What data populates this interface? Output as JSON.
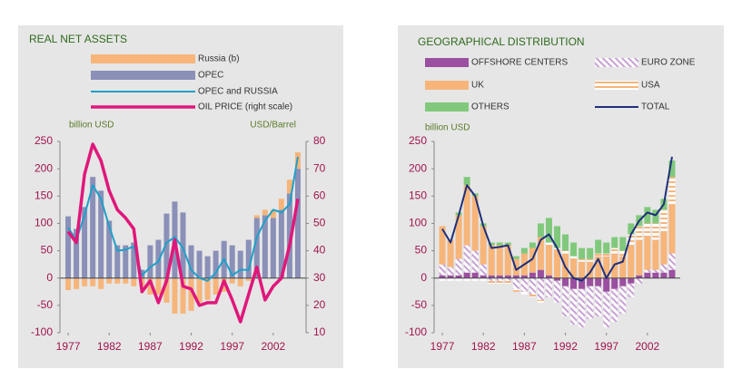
{
  "chart_data": [
    {
      "type": "bar_line",
      "title": "REAL NET ASSETS",
      "y_label": "billion USD",
      "y2_label": "USD/Barrel",
      "x": [
        1977,
        1978,
        1979,
        1980,
        1981,
        1982,
        1983,
        1984,
        1985,
        1986,
        1987,
        1988,
        1989,
        1990,
        1991,
        1992,
        1993,
        1994,
        1995,
        1996,
        1997,
        1998,
        1999,
        2000,
        2001,
        2002,
        2003,
        2004,
        2005
      ],
      "xlim": [
        1976,
        2006
      ],
      "xticks": [
        1977,
        1982,
        1987,
        1992,
        1997,
        2002
      ],
      "ylim": [
        -100,
        250
      ],
      "yticks": [
        -100,
        -50,
        0,
        50,
        100,
        150,
        200,
        250
      ],
      "y2lim": [
        10,
        80
      ],
      "y2ticks": [
        10,
        20,
        30,
        40,
        50,
        60,
        70,
        80
      ],
      "series": [
        {
          "name": "Russia (b)",
          "color": "#f7b57a",
          "kind": "bar",
          "values": [
            -22,
            -20,
            -15,
            -15,
            -20,
            -10,
            -10,
            -10,
            -15,
            -15,
            -30,
            -30,
            -45,
            -65,
            -65,
            -60,
            -45,
            -40,
            -30,
            -25,
            -10,
            -15,
            -5,
            5,
            10,
            15,
            20,
            25,
            30
          ]
        },
        {
          "name": "OPEC",
          "color": "#8a90b8",
          "kind": "bar",
          "values": [
            113,
            90,
            130,
            185,
            160,
            105,
            60,
            60,
            65,
            15,
            60,
            70,
            118,
            140,
            120,
            60,
            50,
            40,
            50,
            68,
            60,
            50,
            70,
            110,
            115,
            110,
            125,
            155,
            200
          ]
        },
        {
          "name": "OPEC and RUSSIA",
          "color": "#1fa0c8",
          "kind": "line",
          "values": [
            92,
            70,
            115,
            170,
            145,
            95,
            50,
            52,
            58,
            5,
            20,
            30,
            65,
            75,
            55,
            15,
            0,
            -5,
            10,
            35,
            5,
            15,
            15,
            75,
            105,
            125,
            120,
            135,
            222
          ]
        },
        {
          "name": "OIL PRICE (right scale)",
          "color": "#e0177a",
          "kind": "line",
          "axis": "y2",
          "values": [
            47,
            43,
            68,
            79,
            73,
            62,
            55,
            52,
            48,
            25,
            29,
            21,
            29,
            44,
            27,
            26,
            20,
            21,
            21,
            29,
            22,
            14,
            24,
            34,
            22,
            27,
            30,
            42,
            59
          ]
        }
      ]
    },
    {
      "type": "bar_line",
      "title": "GEOGRAPHICAL DISTRIBUTION",
      "y_label": "billion USD",
      "x": [
        1977,
        1978,
        1979,
        1980,
        1981,
        1982,
        1983,
        1984,
        1985,
        1986,
        1987,
        1988,
        1989,
        1990,
        1991,
        1992,
        1993,
        1994,
        1995,
        1996,
        1997,
        1998,
        1999,
        2000,
        2001,
        2002,
        2003,
        2004,
        2005
      ],
      "xlim": [
        1976,
        2006
      ],
      "xticks": [
        1977,
        1982,
        1987,
        1992,
        1997,
        2002
      ],
      "ylim": [
        -100,
        250
      ],
      "yticks": [
        -100,
        -50,
        0,
        50,
        100,
        150,
        200,
        250
      ],
      "series": [
        {
          "name": "OFFSHORE CENTERS",
          "color": "#9b4fa0",
          "kind": "bar",
          "values": [
            5,
            5,
            5,
            10,
            10,
            5,
            5,
            5,
            5,
            5,
            5,
            10,
            15,
            5,
            -5,
            -15,
            -20,
            -20,
            -15,
            -15,
            -25,
            -20,
            -15,
            -10,
            5,
            10,
            10,
            10,
            15
          ]
        },
        {
          "name": "EURO ZONE",
          "color": "#c8a0d4",
          "kind": "bar",
          "hatch": true,
          "values": [
            20,
            15,
            30,
            50,
            40,
            20,
            -5,
            -5,
            -5,
            -20,
            -25,
            -30,
            -40,
            -35,
            -40,
            -55,
            -65,
            -70,
            -60,
            -55,
            -65,
            -60,
            -50,
            -25,
            -10,
            5,
            5,
            15,
            30
          ]
        },
        {
          "name": "UK",
          "color": "#f7b57a",
          "kind": "bar",
          "values": [
            70,
            50,
            80,
            110,
            100,
            70,
            55,
            55,
            55,
            30,
            40,
            45,
            60,
            55,
            50,
            45,
            35,
            30,
            30,
            40,
            40,
            45,
            40,
            60,
            65,
            60,
            55,
            60,
            90
          ]
        },
        {
          "name": "USA",
          "color": "#f7b57a",
          "kind": "bar",
          "hatch": true,
          "values": [
            -5,
            -5,
            -5,
            -5,
            -5,
            -5,
            -5,
            -5,
            -5,
            -5,
            -5,
            -5,
            -5,
            5,
            5,
            5,
            5,
            5,
            5,
            5,
            5,
            10,
            10,
            20,
            25,
            25,
            30,
            40,
            50
          ]
        },
        {
          "name": "OTHERS",
          "color": "#80c97c",
          "kind": "bar",
          "values": [
            0,
            0,
            5,
            15,
            5,
            5,
            5,
            5,
            5,
            5,
            10,
            10,
            25,
            45,
            40,
            30,
            25,
            20,
            20,
            25,
            20,
            20,
            25,
            20,
            20,
            30,
            25,
            20,
            30
          ]
        },
        {
          "name": "TOTAL",
          "color": "#1f2f7a",
          "kind": "line",
          "values": [
            90,
            65,
            115,
            170,
            150,
            95,
            55,
            57,
            60,
            15,
            25,
            35,
            70,
            80,
            55,
            20,
            0,
            -5,
            10,
            35,
            0,
            25,
            30,
            80,
            105,
            120,
            115,
            135,
            222
          ]
        }
      ]
    }
  ]
}
